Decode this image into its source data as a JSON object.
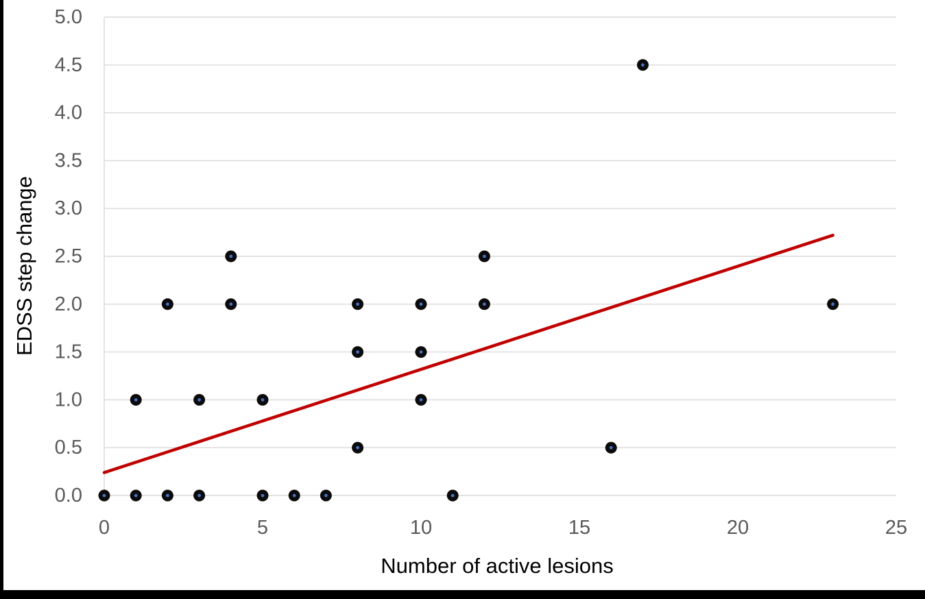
{
  "frame": {
    "border_color": "#000000",
    "background": "#ffffff"
  },
  "chart_data": {
    "type": "scatter",
    "title": "",
    "xlabel": "Number of active lesions",
    "ylabel": "EDSS step change",
    "xlim": [
      0,
      25
    ],
    "ylim": [
      0,
      5
    ],
    "xtick_values": [
      0,
      5,
      10,
      15,
      20,
      25
    ],
    "xtick_labels": [
      "0",
      "5",
      "10",
      "15",
      "20",
      "25"
    ],
    "ytick_values": [
      0,
      0.5,
      1,
      1.5,
      2,
      2.5,
      3,
      3.5,
      4,
      4.5,
      5
    ],
    "ytick_labels": [
      "0.0",
      "0.5",
      "1.0",
      "1.5",
      "2.0",
      "2.5",
      "3.0",
      "3.5",
      "4.0",
      "4.5",
      "5.0"
    ],
    "grid": "horizontal-only",
    "legend": "none",
    "points": [
      [
        0,
        0
      ],
      [
        1,
        0
      ],
      [
        2,
        0
      ],
      [
        3,
        0
      ],
      [
        5,
        0
      ],
      [
        6,
        0
      ],
      [
        7,
        0
      ],
      [
        11,
        0
      ],
      [
        8,
        0.5
      ],
      [
        16,
        0.5
      ],
      [
        1,
        1
      ],
      [
        3,
        1
      ],
      [
        5,
        1
      ],
      [
        10,
        1
      ],
      [
        8,
        1.5
      ],
      [
        10,
        1.5
      ],
      [
        2,
        2
      ],
      [
        4,
        2
      ],
      [
        8,
        2
      ],
      [
        10,
        2
      ],
      [
        12,
        2
      ],
      [
        23,
        2
      ],
      [
        4,
        2.5
      ],
      [
        12,
        2.5
      ],
      [
        17,
        4.5
      ]
    ],
    "trendline": {
      "x_start": 0,
      "y_start": 0.24,
      "x_end": 23,
      "y_end": 2.72
    },
    "colors": {
      "marker": "#0b0b0b",
      "marker_center": "#4472c4",
      "trendline": "#c00000",
      "gridline": "#d9d9d9",
      "axis_line": "#d9d9d9",
      "tick_label": "#595959",
      "axis_title": "#000000"
    }
  }
}
